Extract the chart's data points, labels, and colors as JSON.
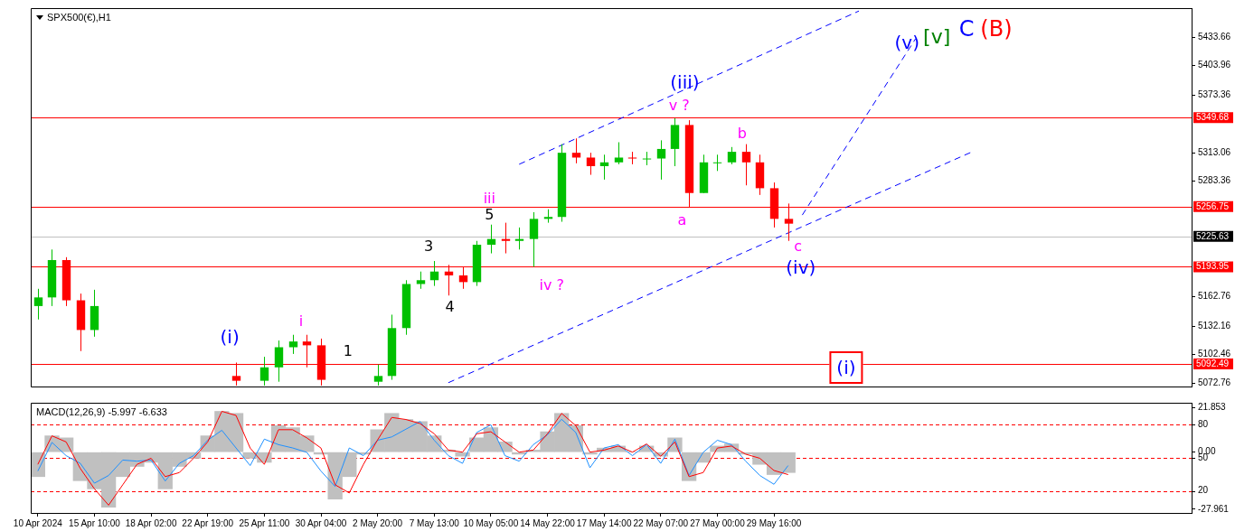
{
  "chart_data": [
    {
      "type": "candlestick",
      "title": "SPX500(€),H1",
      "categories": [
        null,
        null,
        null,
        null,
        null,
        null,
        null,
        null,
        null,
        null,
        null,
        null,
        null,
        null,
        null,
        null,
        null,
        null,
        null,
        null,
        null,
        null,
        null,
        null,
        null,
        null,
        null,
        null,
        null,
        null,
        null,
        null,
        null,
        null,
        null,
        null,
        null,
        null,
        null,
        null,
        null,
        null,
        null,
        null,
        null,
        null,
        null,
        null,
        null,
        null,
        null,
        null,
        null,
        null,
        null,
        null,
        null,
        null,
        null,
        null,
        null,
        null,
        null,
        null,
        null,
        null,
        null,
        null,
        null,
        null,
        null,
        null,
        null,
        null,
        null,
        null,
        null,
        null,
        null,
        null,
        null,
        null
      ],
      "ohlc": [
        [
          5153,
          5171,
          5139,
          5162
        ],
        [
          5162,
          5212,
          5153,
          5201
        ],
        [
          5201,
          5204,
          5153,
          5159
        ],
        [
          5159,
          5166,
          5106,
          5128
        ],
        [
          5128,
          5170,
          5121,
          5153
        ],
        null,
        null,
        null,
        null,
        null,
        null,
        null,
        null,
        null,
        [
          5080,
          5094,
          5070,
          5075
        ],
        null,
        [
          5075,
          5100,
          5070,
          5089
        ],
        [
          5089,
          5117,
          5074,
          5110
        ],
        [
          5110,
          5123,
          5103,
          5116
        ],
        [
          5116,
          5123,
          5089,
          5112
        ],
        [
          5112,
          5119,
          5070,
          5076
        ],
        null,
        null,
        null,
        [
          5074,
          5092,
          5070,
          5080
        ],
        [
          5080,
          5144,
          5076,
          5130
        ],
        [
          5130,
          5180,
          5123,
          5176
        ],
        [
          5176,
          5189,
          5171,
          5180
        ],
        [
          5180,
          5200,
          5174,
          5189
        ],
        [
          5189,
          5196,
          5164,
          5185
        ],
        [
          5185,
          5194,
          5171,
          5178
        ],
        [
          5178,
          5221,
          5174,
          5217
        ],
        [
          5217,
          5238,
          5208,
          5223
        ],
        [
          5223,
          5240,
          5208,
          5221
        ],
        [
          5221,
          5235,
          5212,
          5223
        ],
        [
          5223,
          5251,
          5194,
          5244
        ],
        [
          5244,
          5254,
          5240,
          5246
        ],
        [
          5246,
          5322,
          5241,
          5313
        ],
        [
          5313,
          5328,
          5302,
          5308
        ],
        [
          5308,
          5313,
          5290,
          5299
        ],
        [
          5299,
          5311,
          5285,
          5303
        ],
        [
          5303,
          5324,
          5301,
          5308
        ],
        [
          5308,
          5314,
          5301,
          5307
        ],
        [
          5307,
          5314,
          5300,
          5307
        ],
        [
          5307,
          5326,
          5285,
          5317
        ],
        [
          5317,
          5349,
          5299,
          5342
        ],
        [
          5342,
          5347,
          5256,
          5271
        ],
        [
          5271,
          5311,
          5271,
          5303
        ],
        [
          5303,
          5311,
          5294,
          5303
        ],
        [
          5303,
          5319,
          5301,
          5314
        ],
        [
          5314,
          5322,
          5279,
          5303
        ],
        [
          5303,
          5311,
          5269,
          5276
        ],
        [
          5276,
          5282,
          5235,
          5244
        ],
        [
          5244,
          5260,
          5221,
          5239
        ],
        null,
        null,
        null,
        null,
        null,
        null,
        null,
        null,
        null,
        null,
        null,
        null,
        null,
        null,
        null,
        null,
        null,
        null,
        null,
        null,
        null,
        null,
        null,
        null,
        null,
        null,
        null,
        null
      ],
      "series": [
        {
          "type": "line",
          "color": "#0000ff",
          "values": [
            null,
            null,
            null,
            null,
            null,
            null,
            null,
            null,
            null,
            null,
            null,
            null,
            null,
            null,
            null,
            null,
            null,
            null,
            null,
            null,
            null,
            null,
            null,
            null,
            null,
            null,
            null,
            null,
            null,
            null,
            null,
            null,
            null,
            null,
            5301,
            null,
            null,
            null,
            null,
            null,
            null,
            null,
            null,
            null,
            null,
            null,
            null,
            null,
            null,
            null,
            null,
            null,
            null,
            null,
            null,
            null,
            null,
            null,
            5461,
            null,
            null,
            null,
            null,
            null,
            null,
            null,
            null,
            null,
            null,
            null,
            null,
            null,
            null,
            null,
            null,
            null,
            null,
            null,
            null,
            null,
            null,
            null
          ]
        },
        {
          "type": "line",
          "color": "#0000ff",
          "values": [
            null,
            null,
            null,
            null,
            null,
            null,
            null,
            null,
            null,
            null,
            null,
            null,
            null,
            null,
            null,
            null,
            null,
            null,
            null,
            null,
            null,
            null,
            null,
            null,
            null,
            null,
            null,
            null,
            null,
            5073,
            null,
            null,
            null,
            null,
            null,
            null,
            null,
            null,
            null,
            null,
            null,
            null,
            null,
            null,
            null,
            null,
            null,
            null,
            null,
            null,
            null,
            null,
            null,
            null,
            null,
            null,
            null,
            null,
            null,
            null,
            null,
            null,
            null,
            null,
            null,
            null,
            5314,
            null,
            null,
            null,
            null,
            null,
            null,
            null,
            null,
            null,
            null,
            null,
            null,
            null,
            null,
            null
          ]
        },
        {
          "type": "line",
          "color": "#0000ff",
          "values": [
            null,
            null,
            null,
            null,
            null,
            null,
            null,
            null,
            null,
            null,
            null,
            null,
            null,
            null,
            null,
            null,
            null,
            null,
            null,
            null,
            null,
            null,
            null,
            null,
            null,
            null,
            null,
            null,
            null,
            null,
            null,
            null,
            null,
            null,
            null,
            null,
            null,
            null,
            null,
            null,
            null,
            null,
            null,
            null,
            null,
            null,
            null,
            null,
            null,
            null,
            null,
            null,
            null,
            null,
            5248,
            null,
            null,
            null,
            null,
            null,
            null,
            null,
            5432,
            null,
            null,
            null,
            null,
            null,
            null,
            null,
            null,
            null,
            null,
            null,
            null,
            null,
            null,
            null,
            null,
            null,
            null,
            null
          ]
        }
      ],
      "line_style": "dashed",
      "marker": "none",
      "ylim": [
        5069,
        5464
      ],
      "yticks": [
        5433.66,
        5403.96,
        5373.36,
        5313.06,
        5283.36,
        5162.76,
        5132.16,
        5102.46,
        5072.76
      ],
      "tick_labels": "y",
      "grid": false,
      "legend": false,
      "ref_lines": [
        {
          "axis": "y",
          "value": 5349.68,
          "label": "5349.68",
          "color": "#ff0000"
        },
        {
          "axis": "y",
          "value": 5256.75,
          "label": "5256.75",
          "color": "#ff0000"
        },
        {
          "axis": "y",
          "value": 5225.63,
          "label": "5225.63",
          "color": "#c0c0c0"
        },
        {
          "axis": "y",
          "value": 5193.95,
          "label": "5193.95",
          "color": "#ff0000"
        },
        {
          "axis": "y",
          "value": 5092.49,
          "label": "5092.49",
          "color": "#ff0000"
        }
      ],
      "annotations": [
        "(i)",
        "i",
        "1",
        "3",
        "4",
        "5",
        "iii",
        "iv ?",
        "(iii)",
        "v ?",
        "a",
        "b",
        "c",
        "(iv)",
        "(v)",
        "[v]",
        "C",
        "(B)",
        "(i)"
      ]
    },
    {
      "type": "bar",
      "title": "MACD(12,26,9) -5.997 -6.633",
      "categories": [
        "10 Apr 2024",
        null,
        null,
        null,
        "15 Apr 10:00",
        null,
        null,
        null,
        "18 Apr 02:00",
        null,
        null,
        null,
        "22 Apr 19:00",
        null,
        null,
        null,
        "25 Apr 11:00",
        null,
        null,
        null,
        "30 Apr 04:00",
        null,
        null,
        null,
        "2 May 20:00",
        null,
        null,
        null,
        "7 May 13:00",
        null,
        null,
        null,
        "10 May 05:00",
        null,
        null,
        null,
        "14 May 22:00",
        null,
        null,
        null,
        "17 May 14:00",
        null,
        null,
        null,
        "22 May 07:00",
        null,
        null,
        null,
        "27 May 00:00",
        null,
        null,
        null,
        "29 May 16:00",
        null,
        null,
        null,
        null,
        null,
        null,
        null,
        null,
        null,
        null,
        null,
        null,
        null,
        null,
        null,
        null,
        null,
        null,
        null,
        null,
        null,
        null,
        null,
        null,
        null,
        null,
        null,
        null,
        null
      ],
      "series": [
        {
          "color": "#c0c0c0",
          "values": [
            -12,
            8,
            7,
            -14,
            -18,
            -27,
            -12,
            -7,
            -5,
            -18,
            -7,
            -3,
            8,
            20,
            19,
            -3,
            -5,
            13,
            12,
            8,
            -1,
            -23,
            -12,
            -1,
            11,
            19,
            16,
            15,
            8,
            1,
            -2,
            7,
            12,
            5,
            -1,
            1,
            10,
            19,
            13,
            -1,
            2,
            3,
            0,
            3,
            -2,
            7,
            -14,
            -5,
            3,
            4,
            -1,
            -6,
            -11,
            -10,
            null,
            null,
            null,
            null,
            null,
            null,
            null,
            null,
            null,
            null,
            null,
            null,
            null,
            null,
            null,
            null,
            null,
            null,
            null,
            null,
            null,
            null,
            null,
            null,
            null,
            null,
            null,
            null
          ]
        },
        {
          "type": "line",
          "color": "#ff0000",
          "values": [
            -6,
            8,
            5,
            -8,
            -18,
            -26,
            -16,
            -6,
            -3,
            -12,
            -10,
            -3,
            5,
            20,
            18,
            2,
            -6,
            11,
            11,
            7,
            2,
            -16,
            -20,
            -6,
            6,
            17,
            16,
            14,
            9,
            1,
            0,
            9,
            10,
            5,
            0,
            1,
            9,
            19,
            13,
            0,
            1,
            3,
            0,
            4,
            -2,
            5,
            -12,
            -10,
            2,
            3,
            -1,
            -3,
            -9,
            -11,
            null,
            null,
            null,
            null,
            null,
            null,
            null,
            null,
            null,
            null,
            null,
            null,
            null,
            null,
            null,
            null,
            null,
            null,
            null,
            null,
            null,
            null,
            null,
            null,
            null,
            null,
            null,
            null
          ]
        },
        {
          "type": "line",
          "color": "#1e90ff",
          "axis": "y2",
          "values": [
            38,
            64,
            52,
            45,
            27,
            34,
            48,
            47,
            48,
            29,
            45,
            52,
            66,
            75,
            59,
            43,
            67,
            62,
            59,
            55,
            38,
            24,
            59,
            52,
            66,
            69,
            76,
            83,
            66,
            52,
            45,
            73,
            80,
            52,
            47,
            62,
            71,
            85,
            73,
            41,
            59,
            62,
            52,
            62,
            45,
            67,
            34,
            55,
            66,
            62,
            47,
            34,
            26,
            43,
            null,
            null,
            null,
            null,
            null,
            null,
            null,
            null,
            null,
            null,
            null,
            null,
            null,
            null,
            null,
            null,
            null,
            null,
            null,
            null,
            null,
            null,
            null,
            null,
            null,
            null,
            null,
            null
          ]
        }
      ],
      "marker": "none",
      "grid": false,
      "legend": false,
      "ylim": [
        -29.8,
        24.2
      ],
      "yticks": [
        21.853,
        {
          "value": 0,
          "label": "0.00"
        },
        -27.961
      ],
      "y2lim": [
        0,
        100
      ],
      "y2ticks": [
        80,
        50,
        20
      ],
      "ref_lines": [
        {
          "axis": "y2",
          "value": 80,
          "color": "#ff0000",
          "line_style": "dashed"
        },
        {
          "axis": "y2",
          "value": 50,
          "color": "#ff0000",
          "line_style": "dashed"
        },
        {
          "axis": "y2",
          "value": 20,
          "color": "#ff0000",
          "line_style": "dashed"
        }
      ]
    }
  ]
}
